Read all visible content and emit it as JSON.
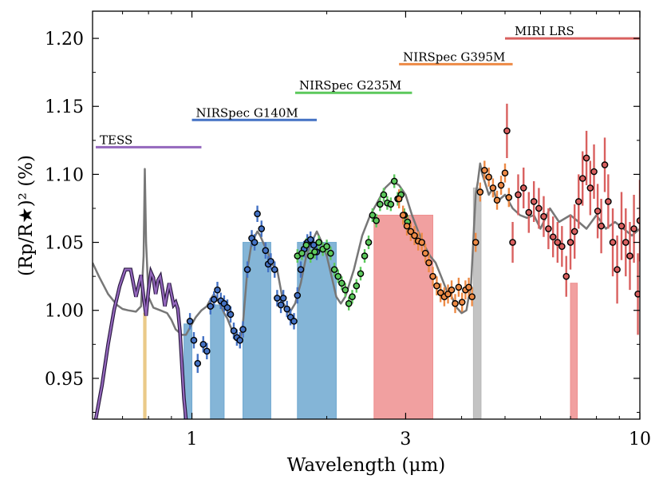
{
  "chart_data": {
    "type": "scatter",
    "title": "",
    "xlabel": "Wavelength (μm)",
    "ylabel": "(Rp/R★)² (%)",
    "xscale": "log",
    "xlim": [
      0.6,
      10
    ],
    "ylim": [
      0.92,
      1.22
    ],
    "xticks": [
      {
        "value": 1,
        "label": "1"
      },
      {
        "value": 3,
        "label": "3"
      },
      {
        "value": 10,
        "label": "10"
      }
    ],
    "yticks": [
      {
        "value": 0.95,
        "label": "0.95"
      },
      {
        "value": 1.0,
        "label": "1.00"
      },
      {
        "value": 1.05,
        "label": "1.05"
      },
      {
        "value": 1.1,
        "label": "1.10"
      },
      {
        "value": 1.15,
        "label": "1.15"
      },
      {
        "value": 1.2,
        "label": "1.20"
      }
    ],
    "instruments": [
      {
        "name": "TESS",
        "x0": 0.61,
        "x1": 1.05,
        "y": 1.12,
        "color": "#9467bd"
      },
      {
        "name": "NIRSpec G140M",
        "x0": 1.0,
        "x1": 1.9,
        "y": 1.14,
        "color": "#4472c4"
      },
      {
        "name": "NIRSpec G235M",
        "x0": 1.7,
        "x1": 3.1,
        "y": 1.16,
        "color": "#5cc85c"
      },
      {
        "name": "NIRSpec G395M",
        "x0": 2.9,
        "x1": 5.2,
        "y": 1.181,
        "color": "#ed8a45"
      },
      {
        "name": "MIRI LRS",
        "x0": 5.0,
        "x1": 10.0,
        "y": 1.2,
        "color": "#d9605f"
      }
    ],
    "bands": [
      {
        "x0": 0.78,
        "x1": 0.79,
        "y0": 0.92,
        "y1": 0.998,
        "color": "#e8c37a"
      },
      {
        "x0": 0.96,
        "x1": 1.0,
        "y0": 0.92,
        "y1": 0.99,
        "color": "#6fa8d0"
      },
      {
        "x0": 1.1,
        "x1": 1.18,
        "y0": 0.92,
        "y1": 1.004,
        "color": "#6fa8d0"
      },
      {
        "x0": 1.3,
        "x1": 1.5,
        "y0": 0.92,
        "y1": 1.05,
        "color": "#6fa8d0"
      },
      {
        "x0": 1.72,
        "x1": 2.1,
        "y0": 0.92,
        "y1": 1.05,
        "color": "#6fa8d0"
      },
      {
        "x0": 2.55,
        "x1": 3.45,
        "y0": 0.92,
        "y1": 1.07,
        "color": "#ee8f8f"
      },
      {
        "x0": 4.25,
        "x1": 4.42,
        "y0": 0.92,
        "y1": 1.09,
        "color": "#b8b8b8"
      },
      {
        "x0": 7.0,
        "x1": 7.25,
        "y0": 0.92,
        "y1": 1.02,
        "color": "#ee8f8f"
      }
    ],
    "model": {
      "name": "model spectrum",
      "color": "#777777",
      "x": [
        0.6,
        0.62,
        0.65,
        0.68,
        0.7,
        0.72,
        0.75,
        0.77,
        0.78,
        0.785,
        0.79,
        0.8,
        0.82,
        0.85,
        0.88,
        0.9,
        0.92,
        0.95,
        0.97,
        1.0,
        1.02,
        1.05,
        1.08,
        1.1,
        1.12,
        1.15,
        1.18,
        1.2,
        1.22,
        1.25,
        1.28,
        1.3,
        1.33,
        1.36,
        1.4,
        1.42,
        1.45,
        1.48,
        1.5,
        1.55,
        1.6,
        1.65,
        1.7,
        1.75,
        1.8,
        1.85,
        1.9,
        1.95,
        2.0,
        2.05,
        2.1,
        2.15,
        2.2,
        2.3,
        2.4,
        2.5,
        2.6,
        2.7,
        2.8,
        2.9,
        3.0,
        3.1,
        3.2,
        3.3,
        3.4,
        3.5,
        3.6,
        3.7,
        3.8,
        3.9,
        4.0,
        4.1,
        4.2,
        4.3,
        4.35,
        4.4,
        4.45,
        4.5,
        4.6,
        4.7,
        4.8,
        5.0,
        5.2,
        5.4,
        5.6,
        5.8,
        6.0,
        6.3,
        6.6,
        7.0,
        7.3,
        7.6,
        8.0,
        8.4,
        8.8,
        9.2,
        9.6,
        10.0
      ],
      "y": [
        1.035,
        1.025,
        1.012,
        1.004,
        1.001,
        1.0,
        0.999,
        1.003,
        1.04,
        1.104,
        1.05,
        1.01,
        1.002,
        1.0,
        0.998,
        0.993,
        0.986,
        0.982,
        0.982,
        0.99,
        0.995,
        1.0,
        1.003,
        1.008,
        1.012,
        1.006,
        0.998,
        0.994,
        0.988,
        0.98,
        0.978,
        0.99,
        1.03,
        1.05,
        1.058,
        1.055,
        1.048,
        1.042,
        1.035,
        1.03,
        1.005,
        0.998,
        1.005,
        1.02,
        1.04,
        1.05,
        1.058,
        1.05,
        1.04,
        1.025,
        1.01,
        1.005,
        1.01,
        1.03,
        1.055,
        1.07,
        1.08,
        1.09,
        1.095,
        1.092,
        1.085,
        1.07,
        1.058,
        1.048,
        1.04,
        1.035,
        1.025,
        1.015,
        1.01,
        1.002,
        0.998,
        1.0,
        1.02,
        1.085,
        1.095,
        1.108,
        1.1,
        1.095,
        1.085,
        1.09,
        1.08,
        1.085,
        1.075,
        1.07,
        1.068,
        1.07,
        1.06,
        1.075,
        1.065,
        1.07,
        1.065,
        1.06,
        1.07,
        1.06,
        1.065,
        1.06,
        1.055,
        1.06
      ]
    },
    "tess_curve": {
      "name": "TESS bandpass",
      "color": "#6a3d9a",
      "x": [
        0.61,
        0.63,
        0.65,
        0.67,
        0.69,
        0.71,
        0.73,
        0.74,
        0.75,
        0.76,
        0.77,
        0.78,
        0.79,
        0.8,
        0.81,
        0.82,
        0.83,
        0.84,
        0.85,
        0.86,
        0.87,
        0.88,
        0.89,
        0.9,
        0.91,
        0.92,
        0.93,
        0.94,
        0.95,
        0.96,
        0.97
      ],
      "y": [
        0.92,
        0.945,
        0.975,
        1.0,
        1.018,
        1.03,
        1.03,
        1.02,
        1.01,
        1.018,
        1.026,
        1.01,
        0.996,
        1.015,
        1.028,
        1.024,
        1.012,
        1.022,
        1.025,
        1.015,
        1.003,
        1.012,
        1.02,
        1.012,
        1.004,
        1.006,
        1.001,
        0.985,
        0.96,
        0.935,
        0.92
      ]
    },
    "series": [
      {
        "name": "NIRSpec G140M",
        "color": "#4472c4",
        "x": [
          0.99,
          1.01,
          1.03,
          1.06,
          1.08,
          1.1,
          1.12,
          1.14,
          1.16,
          1.18,
          1.2,
          1.22,
          1.24,
          1.26,
          1.28,
          1.3,
          1.33,
          1.36,
          1.38,
          1.4,
          1.43,
          1.46,
          1.48,
          1.5,
          1.53,
          1.55,
          1.58,
          1.6,
          1.63,
          1.66,
          1.69,
          1.72,
          1.75,
          1.78,
          1.81,
          1.84,
          1.87,
          1.9
        ],
        "y": [
          0.992,
          0.978,
          0.961,
          0.975,
          0.97,
          1.003,
          1.008,
          1.015,
          1.007,
          1.005,
          1.002,
          0.997,
          0.985,
          0.98,
          0.978,
          0.986,
          1.03,
          1.053,
          1.05,
          1.071,
          1.06,
          1.044,
          1.034,
          1.036,
          1.03,
          1.009,
          1.004,
          1.009,
          1.001,
          0.995,
          0.992,
          1.011,
          1.03,
          1.045,
          1.05,
          1.052,
          1.048,
          1.043
        ],
        "err": [
          0.006,
          0.006,
          0.007,
          0.006,
          0.006,
          0.006,
          0.006,
          0.006,
          0.006,
          0.006,
          0.006,
          0.006,
          0.006,
          0.006,
          0.006,
          0.006,
          0.006,
          0.006,
          0.006,
          0.006,
          0.006,
          0.006,
          0.006,
          0.006,
          0.006,
          0.006,
          0.006,
          0.006,
          0.006,
          0.006,
          0.006,
          0.006,
          0.006,
          0.006,
          0.006,
          0.006,
          0.006,
          0.006
        ]
      },
      {
        "name": "NIRSpec G235M",
        "color": "#5cc85c",
        "x": [
          1.72,
          1.76,
          1.8,
          1.84,
          1.88,
          1.92,
          1.96,
          2.0,
          2.04,
          2.08,
          2.12,
          2.16,
          2.2,
          2.24,
          2.28,
          2.33,
          2.38,
          2.43,
          2.48,
          2.53,
          2.58,
          2.63,
          2.68,
          2.73,
          2.78,
          2.83,
          2.88,
          2.93,
          2.98,
          3.03
        ],
        "y": [
          1.04,
          1.042,
          1.048,
          1.04,
          1.043,
          1.05,
          1.045,
          1.047,
          1.042,
          1.03,
          1.025,
          1.02,
          1.015,
          1.005,
          1.01,
          1.018,
          1.027,
          1.04,
          1.05,
          1.07,
          1.066,
          1.078,
          1.085,
          1.079,
          1.078,
          1.095,
          1.082,
          1.085,
          1.07,
          1.065
        ],
        "err": [
          0.005,
          0.005,
          0.005,
          0.005,
          0.005,
          0.005,
          0.005,
          0.005,
          0.005,
          0.005,
          0.005,
          0.005,
          0.005,
          0.005,
          0.005,
          0.005,
          0.005,
          0.005,
          0.005,
          0.005,
          0.005,
          0.005,
          0.005,
          0.005,
          0.005,
          0.005,
          0.005,
          0.005,
          0.005,
          0.005
        ]
      },
      {
        "name": "NIRSpec G395M",
        "color": "#ed8a45",
        "x": [
          2.9,
          2.96,
          3.02,
          3.08,
          3.14,
          3.2,
          3.26,
          3.32,
          3.38,
          3.45,
          3.52,
          3.59,
          3.66,
          3.73,
          3.8,
          3.87,
          3.94,
          4.01,
          4.08,
          4.15,
          4.22,
          4.3,
          4.4,
          4.5,
          4.6,
          4.7,
          4.8,
          4.9,
          5.0,
          5.1
        ],
        "y": [
          1.082,
          1.07,
          1.062,
          1.058,
          1.055,
          1.051,
          1.05,
          1.042,
          1.035,
          1.025,
          1.018,
          1.013,
          1.01,
          1.012,
          1.015,
          1.005,
          1.017,
          1.006,
          1.015,
          1.017,
          1.01,
          1.05,
          1.087,
          1.103,
          1.098,
          1.09,
          1.081,
          1.092,
          1.101,
          1.083
        ],
        "err": [
          0.007,
          0.007,
          0.007,
          0.007,
          0.007,
          0.007,
          0.007,
          0.007,
          0.007,
          0.007,
          0.007,
          0.007,
          0.007,
          0.007,
          0.007,
          0.007,
          0.007,
          0.007,
          0.007,
          0.007,
          0.007,
          0.007,
          0.007,
          0.007,
          0.007,
          0.007,
          0.007,
          0.007,
          0.007,
          0.007
        ]
      },
      {
        "name": "MIRI LRS",
        "color": "#d9605f",
        "x": [
          5.05,
          5.2,
          5.35,
          5.5,
          5.65,
          5.8,
          5.95,
          6.1,
          6.25,
          6.4,
          6.55,
          6.7,
          6.85,
          7.0,
          7.15,
          7.3,
          7.45,
          7.6,
          7.75,
          7.9,
          8.05,
          8.2,
          8.35,
          8.5,
          8.7,
          8.9,
          9.1,
          9.3,
          9.5,
          9.7,
          9.9,
          10.0
        ],
        "y": [
          1.132,
          1.05,
          1.085,
          1.09,
          1.072,
          1.08,
          1.075,
          1.069,
          1.06,
          1.054,
          1.05,
          1.047,
          1.025,
          1.05,
          1.058,
          1.08,
          1.097,
          1.112,
          1.09,
          1.102,
          1.073,
          1.062,
          1.107,
          1.08,
          1.05,
          1.03,
          1.062,
          1.05,
          1.04,
          1.06,
          1.012,
          1.066
        ],
        "err": [
          0.02,
          0.015,
          0.015,
          0.015,
          0.015,
          0.015,
          0.015,
          0.015,
          0.015,
          0.015,
          0.015,
          0.015,
          0.015,
          0.02,
          0.02,
          0.02,
          0.02,
          0.02,
          0.02,
          0.02,
          0.02,
          0.02,
          0.02,
          0.02,
          0.025,
          0.025,
          0.025,
          0.025,
          0.025,
          0.025,
          0.03,
          0.03
        ]
      }
    ]
  }
}
